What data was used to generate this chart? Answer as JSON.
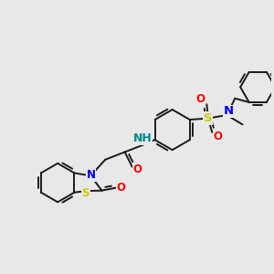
{
  "background_color": "#e8e8e8",
  "bond_color": "#1a1a1a",
  "bond_width": 1.4,
  "atom_colors": {
    "N": "#0000ff",
    "O": "#ff0000",
    "S_thio": "#cccc00",
    "S_sulfonyl": "#cccc00",
    "NH": "#008888"
  },
  "font_size": 8.5,
  "xlim": [
    0,
    10
  ],
  "ylim": [
    0,
    10
  ]
}
